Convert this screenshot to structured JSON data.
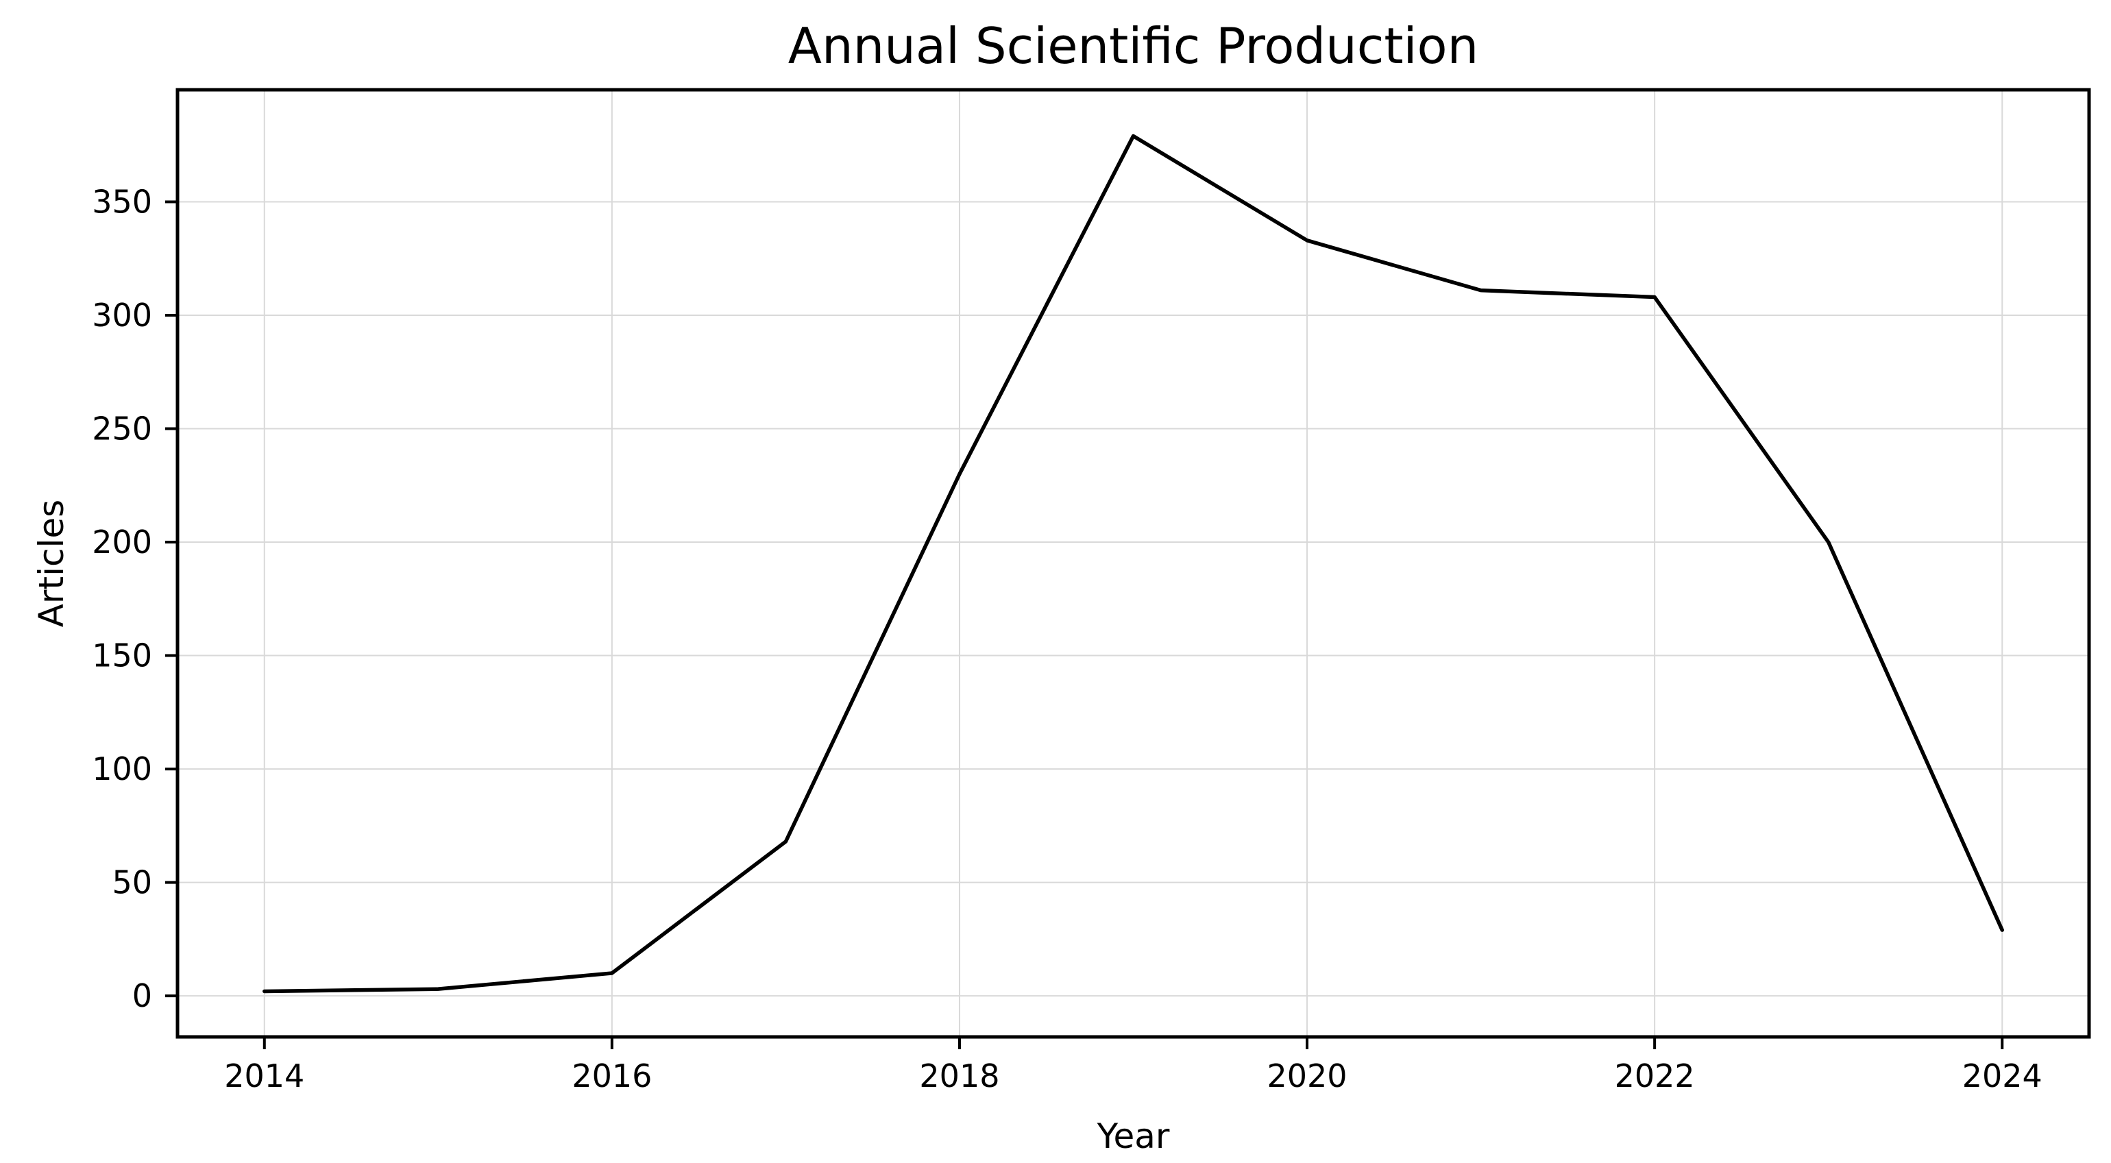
{
  "figure": {
    "title": "Annual Scientific Production",
    "background": "#ffffff"
  },
  "chart_data": {
    "type": "line",
    "title": "Annual Scientific Production",
    "xlabel": "Year",
    "ylabel": "Articles",
    "x": [
      2014,
      2015,
      2016,
      2017,
      2018,
      2019,
      2020,
      2021,
      2022,
      2023,
      2024
    ],
    "series": [
      {
        "name": "Articles",
        "values": [
          2,
          3,
          10,
          68,
          230,
          379,
          333,
          311,
          308,
          200,
          29
        ]
      }
    ],
    "xticks": [
      2014,
      2016,
      2018,
      2020,
      2022,
      2024
    ],
    "yticks": [
      0,
      50,
      100,
      150,
      200,
      250,
      300,
      350
    ],
    "xlim": [
      2013.5,
      2024.5
    ],
    "ylim": [
      -18.1,
      399.4
    ],
    "grid": true,
    "legend_position": "none",
    "line_color": "#000000",
    "grid_color": "#d9d9d9",
    "spine_color": "#000000",
    "text_color": "#000000"
  }
}
